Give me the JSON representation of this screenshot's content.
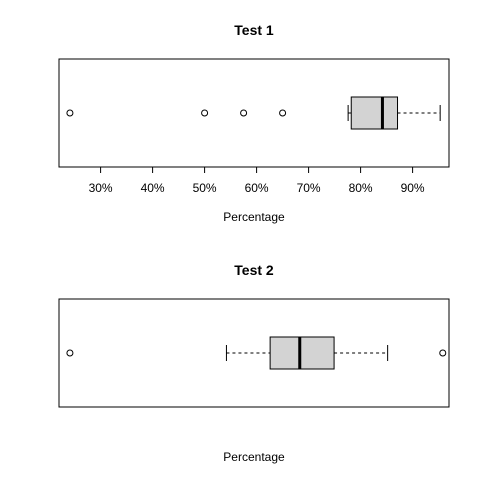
{
  "chart_data": [
    {
      "type": "boxplot",
      "orientation": "horizontal",
      "title": "Test 1",
      "xlabel": "Percentage",
      "xlim": [
        22,
        97
      ],
      "x_ticks": [
        30,
        40,
        50,
        60,
        70,
        80,
        90
      ],
      "x_tick_labels": [
        "30%",
        "40%",
        "50%",
        "60%",
        "70%",
        "80%",
        "90%"
      ],
      "box": {
        "whisker_low": 77.6,
        "q1": 78.2,
        "median": 84.2,
        "q3": 87.1,
        "whisker_high": 95.3
      },
      "outliers": [
        24.1,
        50.0,
        57.5,
        65.0
      ],
      "box_fill": "#d3d3d3"
    },
    {
      "type": "boxplot",
      "orientation": "horizontal",
      "title": "Test 2",
      "xlabel": "Percentage",
      "xlim": [
        22,
        97
      ],
      "x_ticks": [],
      "x_tick_labels": [],
      "box": {
        "whisker_low": 54.2,
        "q1": 62.6,
        "median": 68.3,
        "q3": 74.9,
        "whisker_high": 85.2
      },
      "outliers": [
        24.1,
        95.8
      ],
      "box_fill": "#d3d3d3"
    }
  ]
}
